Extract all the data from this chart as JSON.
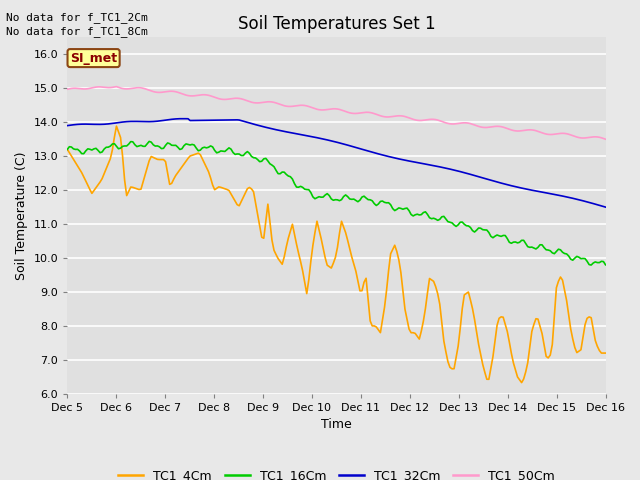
{
  "title": "Soil Temperatures Set 1",
  "xlabel": "Time",
  "ylabel": "Soil Temperature (C)",
  "ylim": [
    6.0,
    16.5
  ],
  "yticks": [
    6.0,
    7.0,
    8.0,
    9.0,
    10.0,
    11.0,
    12.0,
    13.0,
    14.0,
    15.0,
    16.0
  ],
  "background_color": "#e8e8e8",
  "plot_bg_color": "#e0e0e0",
  "annotations": [
    "No data for f_TC1_2Cm",
    "No data for f_TC1_8Cm"
  ],
  "legend_label_box": "SI_met",
  "colors": {
    "TC1_4Cm": "#FFA500",
    "TC1_16Cm": "#00CC00",
    "TC1_32Cm": "#0000CC",
    "TC1_50Cm": "#FF99CC"
  },
  "x_labels": [
    "Dec 5",
    "Dec 6",
    "Dec 7",
    "Dec 8",
    "Dec 9",
    "Dec 10",
    "Dec 11",
    "Dec 12",
    "Dec 13",
    "Dec 14",
    "Dec 15",
    "Dec 16"
  ],
  "figsize": [
    6.4,
    4.8
  ],
  "dpi": 100
}
